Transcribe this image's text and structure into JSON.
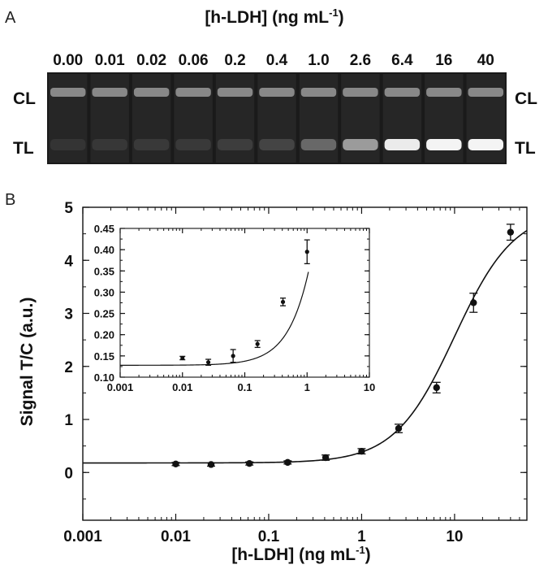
{
  "panel_a": {
    "letter": "A",
    "title": "[h-LDH] (ng mL",
    "title_sup": "-1",
    "title_close": ")",
    "label_cl": "CL",
    "label_tl": "TL",
    "strips": [
      {
        "conc": "0.00",
        "tl_intensity": 0.04
      },
      {
        "conc": "0.01",
        "tl_intensity": 0.05
      },
      {
        "conc": "0.02",
        "tl_intensity": 0.06
      },
      {
        "conc": "0.06",
        "tl_intensity": 0.06
      },
      {
        "conc": "0.2",
        "tl_intensity": 0.08
      },
      {
        "conc": "0.4",
        "tl_intensity": 0.12
      },
      {
        "conc": "1.0",
        "tl_intensity": 0.3
      },
      {
        "conc": "2.6",
        "tl_intensity": 0.55
      },
      {
        "conc": "6.4",
        "tl_intensity": 0.95
      },
      {
        "conc": "16",
        "tl_intensity": 1.0
      },
      {
        "conc": "40",
        "tl_intensity": 1.0
      }
    ]
  },
  "panel_b": {
    "letter": "B"
  },
  "chart_data": [
    {
      "type": "scatter",
      "xlabel": "[h-LDH] (ng mL",
      "xlabel_sup": "-1",
      "xlabel_close": ")",
      "ylabel": "Signal T/C (a.u.)",
      "xscale": "log",
      "xlim": [
        0.001,
        60
      ],
      "ylim": [
        -0.9,
        5
      ],
      "xticks": [
        "0.001",
        "0.01",
        "0.1",
        "1",
        "10"
      ],
      "yticks": [
        "0",
        "1",
        "2",
        "3",
        "4",
        "5"
      ],
      "x": [
        0.01,
        0.024,
        0.062,
        0.16,
        0.41,
        1.0,
        2.5,
        6.4,
        16,
        40
      ],
      "y": [
        0.16,
        0.15,
        0.17,
        0.19,
        0.28,
        0.4,
        0.83,
        1.6,
        3.2,
        4.53
      ],
      "yerr": [
        0.03,
        0.03,
        0.03,
        0.03,
        0.05,
        0.05,
        0.08,
        0.1,
        0.18,
        0.15
      ],
      "fit": {
        "bottom": 0.18,
        "top": 4.95,
        "ec50": 10,
        "hill": 1.35
      }
    },
    {
      "type": "scatter",
      "xscale": "log",
      "xlim": [
        0.001,
        10
      ],
      "ylim": [
        0.1,
        0.45
      ],
      "xticks": [
        "0.001",
        "0.01",
        "0.1",
        "1",
        "10"
      ],
      "yticks": [
        "0.10",
        "0.15",
        "0.20",
        "0.25",
        "0.30",
        "0.35",
        "0.40",
        "0.45"
      ],
      "x": [
        0.01,
        0.026,
        0.065,
        0.16,
        0.41,
        1.0
      ],
      "y": [
        0.145,
        0.135,
        0.15,
        0.178,
        0.277,
        0.395
      ],
      "yerr": [
        0.004,
        0.007,
        0.015,
        0.008,
        0.009,
        0.028
      ],
      "fit": {
        "bottom": 0.128,
        "top": 4.95,
        "ec50": 10,
        "hill": 1.35
      }
    }
  ]
}
